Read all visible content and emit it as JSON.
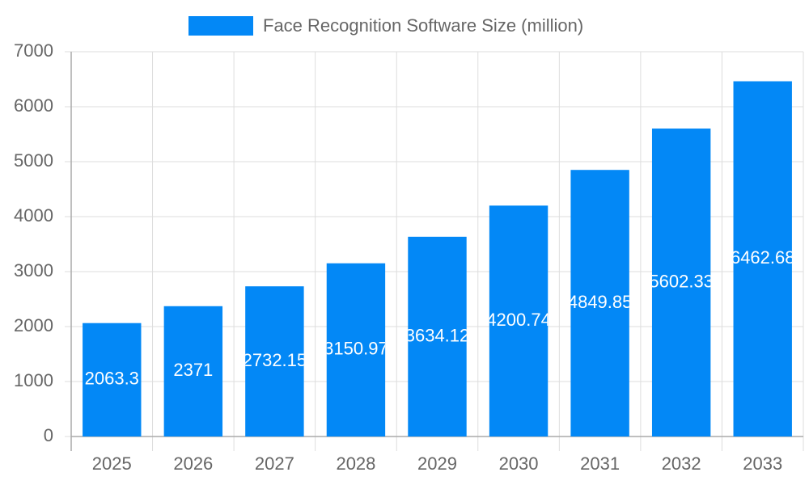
{
  "chart_data": {
    "type": "bar",
    "legend": "Face Recognition Software Size (million)",
    "categories": [
      "2025",
      "2026",
      "2027",
      "2028",
      "2029",
      "2030",
      "2031",
      "2032",
      "2033"
    ],
    "values": [
      2063.3,
      2371,
      2732.15,
      3150.97,
      3634.12,
      4200.74,
      4849.85,
      5602.33,
      6462.68
    ],
    "color": "#0388f6",
    "ylim": [
      0,
      7000
    ],
    "yticks": [
      0,
      1000,
      2000,
      3000,
      4000,
      5000,
      6000,
      7000
    ],
    "grid": true,
    "data_labels": true
  }
}
